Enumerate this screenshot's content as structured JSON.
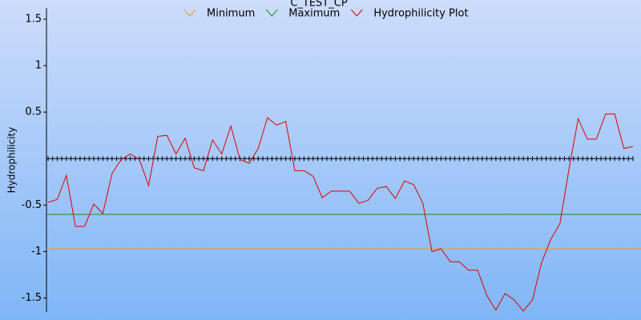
{
  "chart_data": {
    "type": "line",
    "title": "C_TEST_CP",
    "y_label": "Hydrophilicity",
    "ylim": [
      -1.65,
      1.62
    ],
    "yticks": [
      -1.5,
      -1,
      -0.5,
      0.5,
      1,
      1.5
    ],
    "reference_lines": [
      {
        "name": "Minimum",
        "color": "#e8a020",
        "value": -0.97
      },
      {
        "name": "Maximum",
        "color": "#208a20",
        "value": -0.6
      }
    ],
    "series": [
      {
        "name": "Hydrophilicity Plot",
        "color": "#e00000",
        "values": [
          -0.47,
          -0.44,
          -0.18,
          -0.73,
          -0.73,
          -0.49,
          -0.59,
          -0.16,
          -0.01,
          0.05,
          -0.01,
          -0.29,
          0.24,
          0.25,
          0.05,
          0.22,
          -0.1,
          -0.13,
          0.2,
          0.05,
          0.35,
          -0.01,
          -0.05,
          0.11,
          0.44,
          0.36,
          0.4,
          -0.13,
          -0.13,
          -0.19,
          -0.42,
          -0.35,
          -0.35,
          -0.35,
          -0.48,
          -0.45,
          -0.32,
          -0.3,
          -0.43,
          -0.24,
          -0.28,
          -0.48,
          -1.0,
          -0.97,
          -1.11,
          -1.11,
          -1.2,
          -1.2,
          -1.47,
          -1.63,
          -1.45,
          -1.52,
          -1.64,
          -1.52,
          -1.12,
          -0.87,
          -0.7,
          -0.11,
          0.43,
          0.21,
          0.21,
          0.48,
          0.48,
          0.11,
          0.13
        ]
      }
    ]
  }
}
